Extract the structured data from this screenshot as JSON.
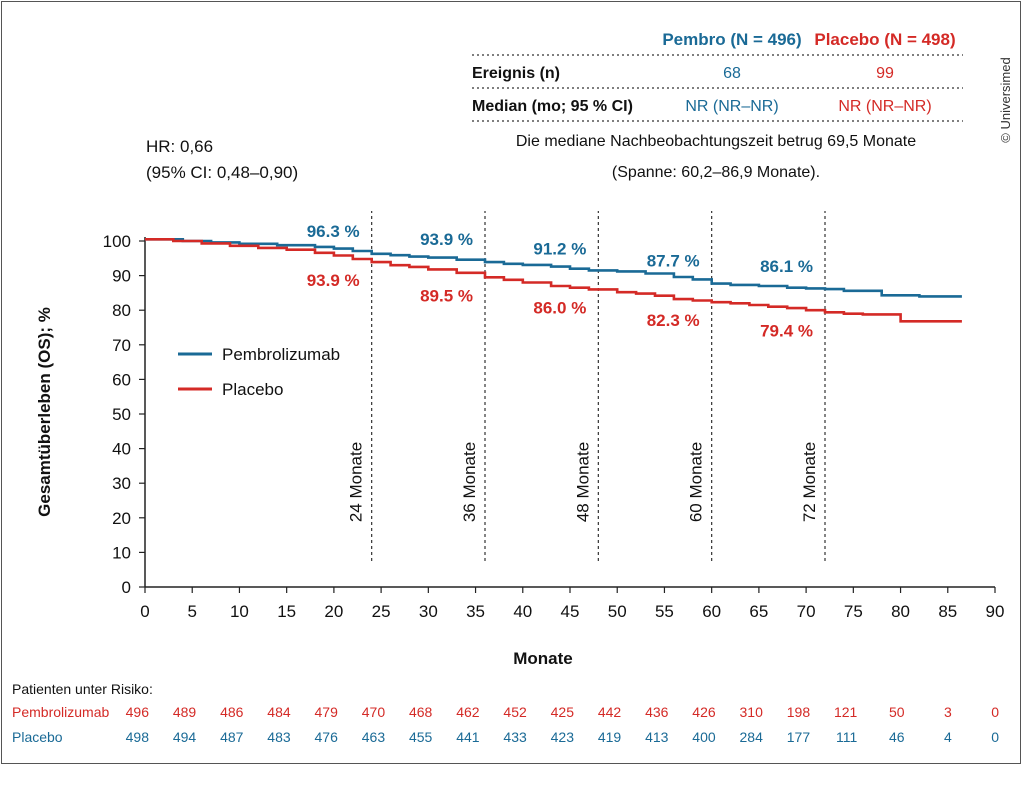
{
  "copyright": "© Universimed",
  "summary_table": {
    "col_pembro": "Pembro (N = 496)",
    "col_placebo": "Placebo (N = 498)",
    "rows": [
      {
        "label": "Ereignis (n)",
        "pembro": "68",
        "placebo": "99"
      },
      {
        "label": "Median (mo; 95 % CI)",
        "pembro": "NR (NR–NR)",
        "placebo": "NR (NR–NR)"
      }
    ],
    "note_line1": "Die mediane Nachbeobachtungszeit betrug 69,5 Monate",
    "note_line2": "(Spanne: 60,2–86,9 Monate)."
  },
  "hr": {
    "line1": "HR: 0,66",
    "line2": "(95% CI: 0,48–0,90)"
  },
  "colors": {
    "pembro": "#1a6a96",
    "placebo": "#d42a26",
    "axis": "#222222",
    "dash": "#333333"
  },
  "chart_data": {
    "type": "line",
    "title": "",
    "xlabel": "Monate",
    "ylabel": "Gesamtüberleben (OS); %",
    "xlim": [
      0,
      90
    ],
    "ylim": [
      0,
      100
    ],
    "x_ticks": [
      0,
      5,
      10,
      15,
      20,
      25,
      30,
      35,
      40,
      45,
      50,
      55,
      60,
      65,
      70,
      75,
      80,
      85,
      90
    ],
    "y_ticks": [
      0,
      10,
      20,
      30,
      40,
      50,
      60,
      70,
      80,
      90,
      100
    ],
    "grid": false,
    "legend_position": "middle-left",
    "series": [
      {
        "name": "Pembrolizumab",
        "color_key": "pembro",
        "x": [
          0,
          4,
          7,
          10,
          14,
          18,
          20,
          22,
          24,
          26,
          28,
          30,
          33,
          36,
          38,
          40,
          43,
          45,
          47,
          50,
          53,
          56,
          58,
          60,
          62,
          65,
          68,
          70,
          72,
          74,
          78,
          82,
          86.5
        ],
        "y": [
          100.5,
          100,
          99.6,
          99.2,
          98.8,
          98.3,
          97.8,
          97.1,
          96.3,
          95.9,
          95.5,
          95.2,
          94.6,
          93.9,
          93.4,
          93.1,
          92.6,
          92.0,
          91.5,
          91.2,
          90.6,
          89.6,
          88.9,
          87.7,
          87.3,
          87.0,
          86.5,
          86.3,
          86.1,
          85.6,
          84.3,
          84.0,
          84.0
        ]
      },
      {
        "name": "Placebo",
        "color_key": "placebo",
        "x": [
          0,
          3,
          6,
          9,
          12,
          15,
          18,
          20,
          22,
          24,
          26,
          28,
          30,
          33,
          36,
          38,
          40,
          43,
          45,
          47,
          50,
          52,
          54,
          56,
          58,
          60,
          62,
          64,
          66,
          68,
          70,
          72,
          74,
          76,
          80,
          86.5
        ],
        "y": [
          100.5,
          100,
          99.3,
          98.6,
          98.0,
          97.5,
          96.6,
          95.8,
          94.8,
          93.9,
          93.0,
          92.5,
          91.8,
          90.8,
          89.5,
          88.8,
          88.0,
          87.0,
          86.5,
          86.0,
          85.2,
          84.8,
          84.2,
          83.2,
          82.8,
          82.3,
          82.0,
          81.5,
          81.0,
          80.6,
          80.0,
          79.4,
          79.0,
          78.8,
          76.8,
          76.8
        ]
      }
    ],
    "milestones": [
      {
        "x": 24,
        "label": "24 Monate",
        "pembro_label": "96.3 %",
        "pembro_y": 96.3,
        "placebo_label": "93.9 %",
        "placebo_y": 93.9
      },
      {
        "x": 36,
        "label": "36 Monate",
        "pembro_label": "93.9 %",
        "pembro_y": 93.9,
        "placebo_label": "89.5 %",
        "placebo_y": 89.5
      },
      {
        "x": 48,
        "label": "48 Monate",
        "pembro_label": "91.2 %",
        "pembro_y": 91.2,
        "placebo_label": "86.0 %",
        "placebo_y": 86.0
      },
      {
        "x": 60,
        "label": "60 Monate",
        "pembro_label": "87.7 %",
        "pembro_y": 87.7,
        "placebo_label": "82.3 %",
        "placebo_y": 82.3
      },
      {
        "x": 72,
        "label": "72 Monate",
        "pembro_label": "86.1 %",
        "pembro_y": 86.1,
        "placebo_label": "79.4 %",
        "placebo_y": 79.4
      }
    ],
    "at_risk": {
      "title": "Patienten unter Risiko:",
      "rows": [
        {
          "name": "Pembrolizumab",
          "color_key": "placebo",
          "values": [
            "496",
            "489",
            "486",
            "484",
            "479",
            "470",
            "468",
            "462",
            "452",
            "425",
            "442",
            "436",
            "426",
            "310",
            "198",
            "121",
            "50",
            "3",
            "0"
          ]
        },
        {
          "name": "Placebo",
          "color_key": "pembro",
          "values": [
            "498",
            "494",
            "487",
            "483",
            "476",
            "463",
            "455",
            "441",
            "433",
            "423",
            "419",
            "413",
            "400",
            "284",
            "177",
            "111",
            "46",
            "4",
            "0"
          ]
        }
      ]
    }
  }
}
